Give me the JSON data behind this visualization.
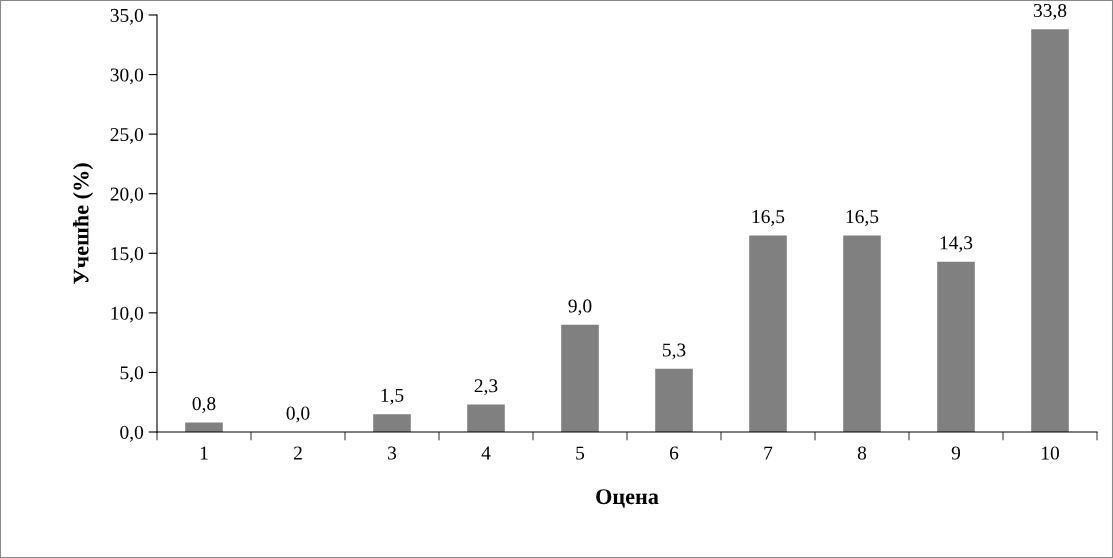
{
  "chart_data": {
    "type": "bar",
    "xlabel": "Оцена",
    "ylabel": "Учешће (%)",
    "categories": [
      "1",
      "2",
      "3",
      "4",
      "5",
      "6",
      "7",
      "8",
      "9",
      "10"
    ],
    "values": [
      0.8,
      0.0,
      1.5,
      2.3,
      9.0,
      5.3,
      16.5,
      16.5,
      14.3,
      33.8
    ],
    "value_labels": [
      "0,8",
      "0,0",
      "1,5",
      "2,3",
      "9,0",
      "5,3",
      "16,5",
      "16,5",
      "14,3",
      "33,8"
    ],
    "color": "#808080",
    "ylim": [
      0,
      35
    ],
    "yticks": [
      {
        "value": 0,
        "label": "0,0"
      },
      {
        "value": 5,
        "label": "5,0"
      },
      {
        "value": 10,
        "label": "10,0"
      },
      {
        "value": 15,
        "label": "15,0"
      },
      {
        "value": 20,
        "label": "20,0"
      },
      {
        "value": 25,
        "label": "25,0"
      },
      {
        "value": 30,
        "label": "30,0"
      },
      {
        "value": 35,
        "label": "35,0"
      }
    ],
    "grid": false,
    "legend": false
  }
}
